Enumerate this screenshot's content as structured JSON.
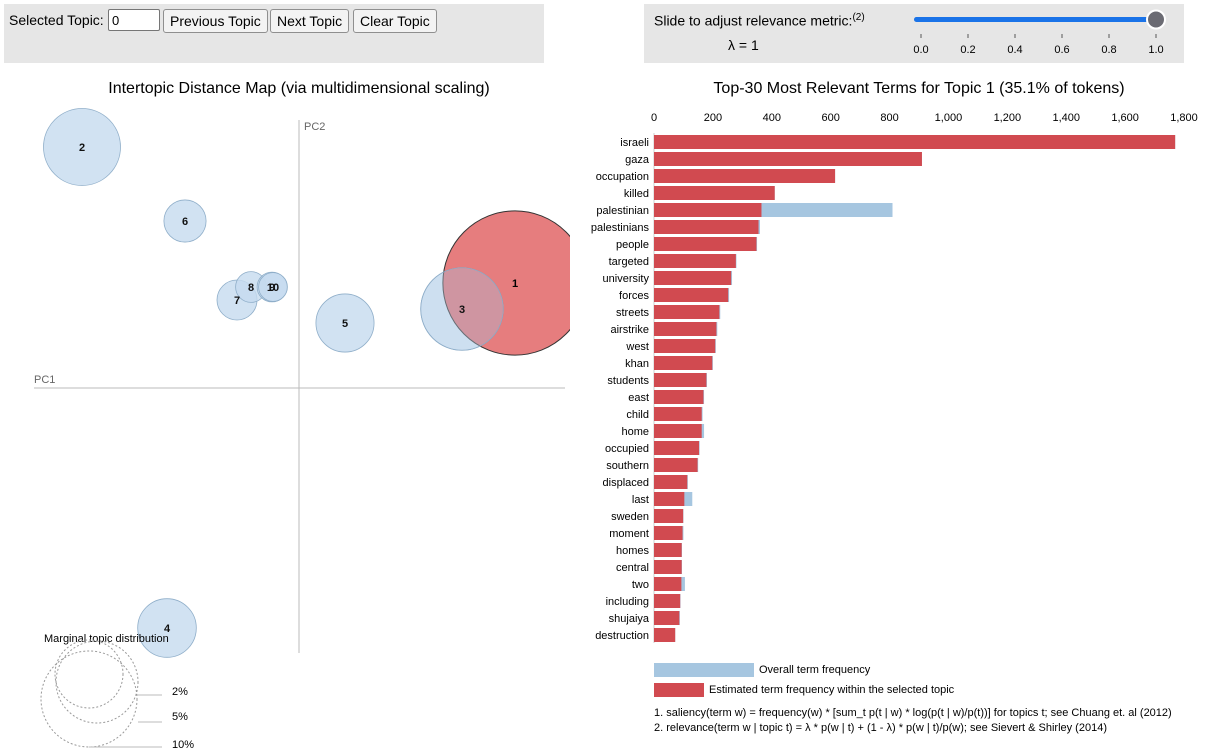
{
  "controls": {
    "selected_topic_label": "Selected Topic:",
    "selected_topic_value": "0",
    "prev_button": "Previous Topic",
    "next_button": "Next Topic",
    "clear_button": "Clear Topic"
  },
  "slider": {
    "label": "Slide to adjust relevance metric:",
    "label_sup": "(2)",
    "lambda_text": "λ = 1",
    "value": 1.0,
    "ticks": [
      "0.0",
      "0.2",
      "0.4",
      "0.6",
      "0.8",
      "1.0"
    ],
    "accent": "#1a73e8"
  },
  "chart_data": [
    {
      "type": "scatter",
      "title": "Intertopic Distance Map (via multidimensional scaling)",
      "xlabel": "PC1",
      "ylabel": "PC2",
      "legend_title": "Marginal topic distribution",
      "legend_entries": [
        "2%",
        "5%",
        "10%"
      ],
      "topics": [
        {
          "id": "1",
          "x": 216,
          "y": 105,
          "share": 35.1,
          "selected": true
        },
        {
          "id": "2",
          "x": -217,
          "y": 241,
          "share": 10.0
        },
        {
          "id": "3",
          "x": 163,
          "y": 79,
          "share": 11.5
        },
        {
          "id": "4",
          "x": -132,
          "y": -240,
          "share": 5.8
        },
        {
          "id": "5",
          "x": 46,
          "y": 65,
          "share": 5.7
        },
        {
          "id": "6",
          "x": -114,
          "y": 167,
          "share": 3.0
        },
        {
          "id": "7",
          "x": -62,
          "y": 88,
          "share": 2.7
        },
        {
          "id": "8",
          "x": -48,
          "y": 101,
          "share": 1.6
        },
        {
          "id": "9",
          "x": -27,
          "y": 101,
          "share": 1.5
        },
        {
          "id": "10",
          "x": -26,
          "y": 101,
          "share": 1.4
        }
      ],
      "colors": {
        "fill": "#c6dbef",
        "stroke": "#8faec9",
        "selected_fill": "#d62728",
        "axis": "#bbbbbb"
      }
    },
    {
      "type": "bar",
      "title": "Top-30 Most Relevant Terms for Topic 1 (35.1% of tokens)",
      "categories": [
        "israeli",
        "gaza",
        "occupation",
        "killed",
        "palestinian",
        "palestinians",
        "people",
        "targeted",
        "university",
        "forces",
        "streets",
        "airstrike",
        "west",
        "khan",
        "students",
        "east",
        "child",
        "home",
        "occupied",
        "southern",
        "displaced",
        "last",
        "sweden",
        "moment",
        "homes",
        "central",
        "two",
        "including",
        "shujaiya",
        "destruction"
      ],
      "series": [
        {
          "name": "Overall term frequency",
          "color": "#a6c6e0",
          "values": [
            1770,
            910,
            615,
            410,
            810,
            360,
            350,
            280,
            265,
            255,
            225,
            215,
            210,
            200,
            180,
            170,
            165,
            170,
            155,
            150,
            115,
            130,
            100,
            100,
            95,
            95,
            105,
            90,
            88,
            72
          ]
        },
        {
          "name": "Estimated term frequency within the selected topic",
          "color": "#d14a50",
          "values": [
            1770,
            910,
            615,
            410,
            365,
            355,
            348,
            278,
            262,
            252,
            222,
            212,
            208,
            198,
            178,
            168,
            162,
            162,
            153,
            148,
            113,
            103,
            99,
            97,
            94,
            94,
            93,
            89,
            86,
            72
          ]
        }
      ],
      "x_ticks": [
        "0",
        "200",
        "400",
        "600",
        "800",
        "1,000",
        "1,200",
        "1,400",
        "1,600",
        "1,800"
      ],
      "xlim": [
        0,
        1800
      ],
      "legend_entries": [
        "Overall term frequency",
        "Estimated term frequency within the selected topic"
      ],
      "footnotes": [
        "1. saliency(term w) = frequency(w) * [sum_t p(t | w) * log(p(t | w)/p(t))] for topics t; see Chuang et. al (2012)",
        "2. relevance(term w | topic t) = λ * p(w | t) + (1 - λ) * p(w | t)/p(w); see Sievert & Shirley (2014)"
      ]
    }
  ]
}
